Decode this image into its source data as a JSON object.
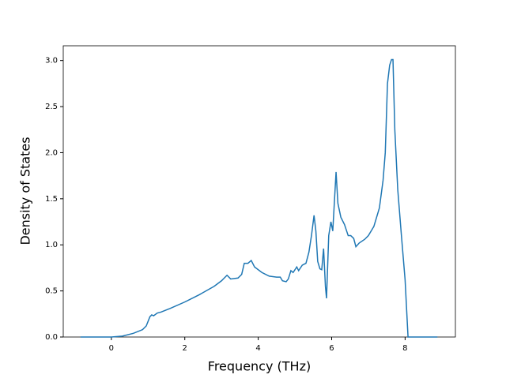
{
  "chart_data": {
    "type": "line",
    "x_label": "Frequency (THz)",
    "y_label": "Density of States",
    "x": [
      -0.84,
      0,
      0.3,
      0.6,
      0.85,
      0.95,
      1.05,
      1.1,
      1.15,
      1.25,
      1.35,
      1.6,
      2,
      2.4,
      2.8,
      3.0,
      3.15,
      3.25,
      3.45,
      3.55,
      3.62,
      3.72,
      3.81,
      3.9,
      4.1,
      4.3,
      4.5,
      4.6,
      4.66,
      4.76,
      4.82,
      4.89,
      4.95,
      5.05,
      5.1,
      5.2,
      5.3,
      5.38,
      5.45,
      5.52,
      5.57,
      5.62,
      5.68,
      5.73,
      5.78,
      5.83,
      5.86,
      5.92,
      5.98,
      6.03,
      6.12,
      6.17,
      6.25,
      6.35,
      6.45,
      6.52,
      6.6,
      6.66,
      6.75,
      6.9,
      7.0,
      7.15,
      7.3,
      7.4,
      7.46,
      7.52,
      7.58,
      7.63,
      7.67,
      7.72,
      7.8,
      7.9,
      8.0,
      8.08,
      8.88
    ],
    "series": [
      {
        "color": "#1f77b4",
        "values": [
          0,
          0,
          0.01,
          0.04,
          0.08,
          0.12,
          0.22,
          0.24,
          0.23,
          0.26,
          0.27,
          0.31,
          0.38,
          0.46,
          0.55,
          0.61,
          0.67,
          0.63,
          0.64,
          0.68,
          0.8,
          0.8,
          0.83,
          0.76,
          0.7,
          0.66,
          0.65,
          0.65,
          0.61,
          0.6,
          0.63,
          0.72,
          0.7,
          0.76,
          0.72,
          0.78,
          0.8,
          0.92,
          1.1,
          1.32,
          1.15,
          0.82,
          0.74,
          0.73,
          0.96,
          0.55,
          0.42,
          1.1,
          1.25,
          1.15,
          1.79,
          1.45,
          1.3,
          1.22,
          1.1,
          1.1,
          1.07,
          0.98,
          1.02,
          1.06,
          1.1,
          1.2,
          1.4,
          1.7,
          2.0,
          2.75,
          2.95,
          3.01,
          3.01,
          2.25,
          1.6,
          1.1,
          0.62,
          0,
          0
        ]
      }
    ],
    "xlim": [
      -1.31,
      9.37
    ],
    "ylim": [
      0,
      3.16
    ],
    "xticks": [
      0,
      2,
      4,
      6,
      8
    ],
    "yticks": [
      {
        "value": 0,
        "label": "0.0"
      },
      {
        "value": 0.5,
        "label": "0.5"
      },
      {
        "value": 1,
        "label": "1.0"
      },
      {
        "value": 1.5,
        "label": "1.5"
      },
      {
        "value": 2,
        "label": "2.0"
      },
      {
        "value": 2.5,
        "label": "2.5"
      },
      {
        "value": 3,
        "label": "3.0"
      }
    ]
  }
}
